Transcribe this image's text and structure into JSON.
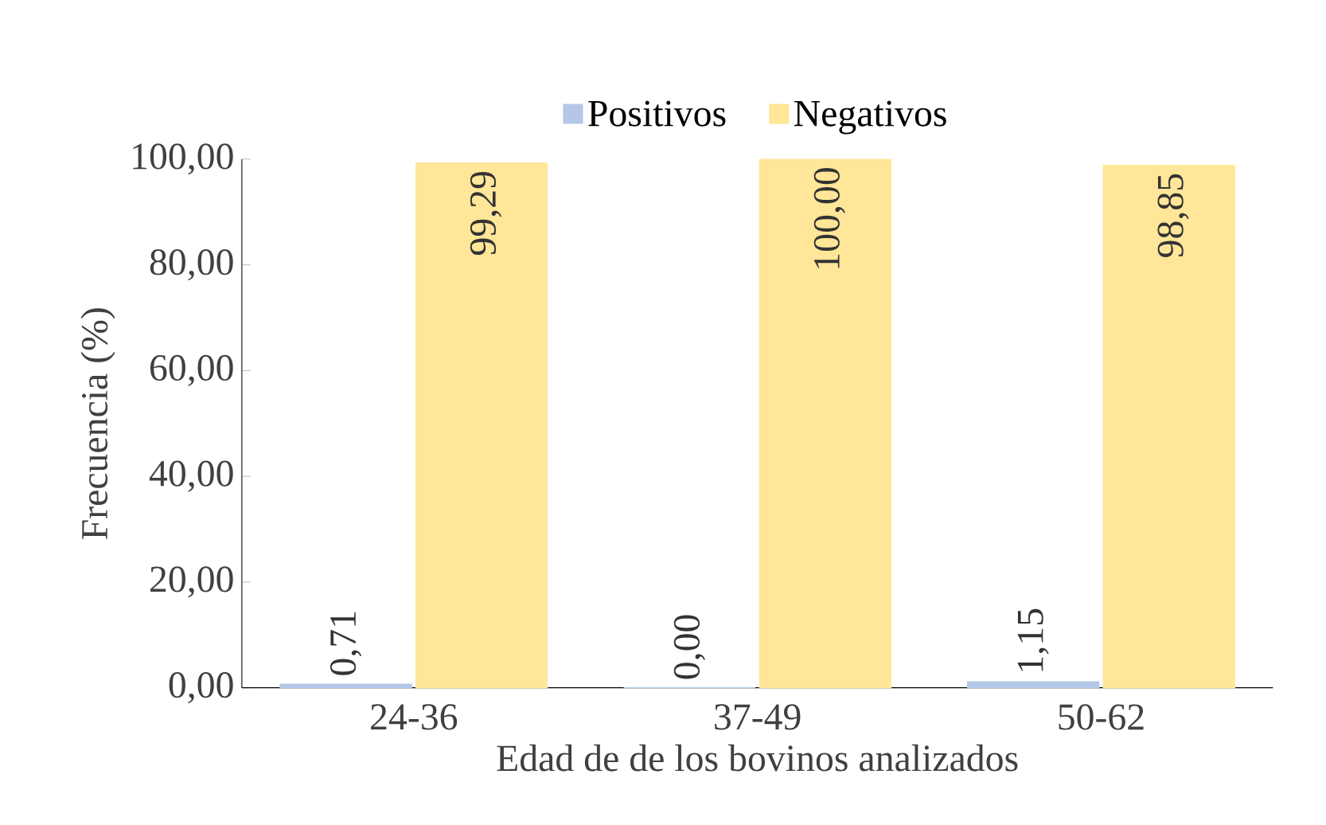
{
  "chart_data": {
    "type": "bar",
    "xlabel": "Edad de de los bovinos analizados",
    "ylabel": "Frecuencia (%)",
    "categories": [
      "24-36",
      "37-49",
      "50-62"
    ],
    "series": [
      {
        "name": "Positivos",
        "color": "#b4c7e7",
        "values": [
          0.71,
          0.0,
          1.15
        ],
        "value_labels": [
          "0,71",
          "0,00",
          "1,15"
        ]
      },
      {
        "name": "Negativos",
        "color": "#ffe699",
        "values": [
          99.29,
          100.0,
          98.85
        ],
        "value_labels": [
          "99,29",
          "100,00",
          "98,85"
        ]
      }
    ],
    "ylim": [
      0,
      100
    ],
    "yticks": [
      {
        "value": 0,
        "label": "0,00"
      },
      {
        "value": 20,
        "label": "20,00"
      },
      {
        "value": 40,
        "label": "40,00"
      },
      {
        "value": 60,
        "label": "60,00"
      },
      {
        "value": 80,
        "label": "80,00"
      },
      {
        "value": 100,
        "label": "100,00"
      }
    ],
    "grid": false,
    "legend": "top"
  }
}
